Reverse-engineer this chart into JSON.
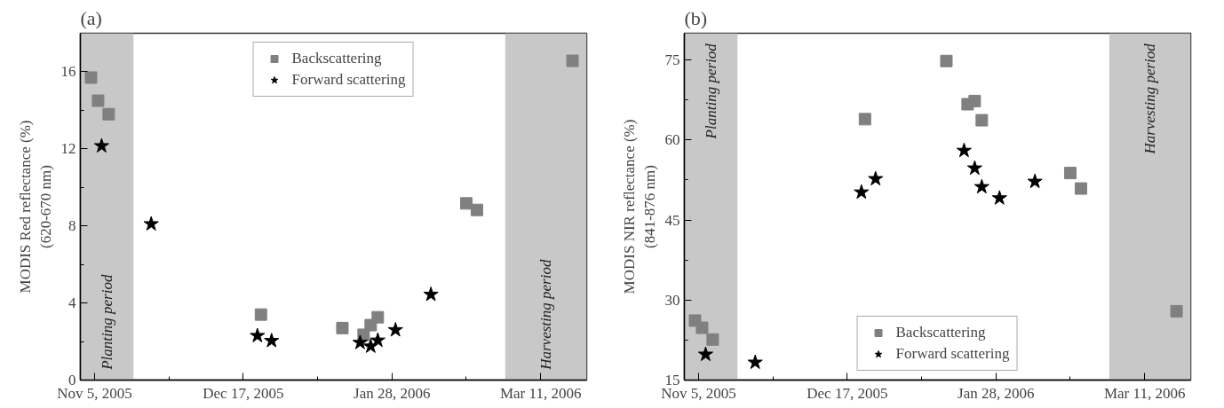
{
  "chart_data": [
    {
      "type": "scatter",
      "title": "(a)",
      "ylabel": "MODIS Red reflectance (%)\n(620-670 nm)",
      "xlim": [
        "2005-11-01",
        "2006-03-24"
      ],
      "ylim": [
        0,
        18
      ],
      "xticks": [
        {
          "value": "2005-11-05",
          "label": "Nov 5, 2005"
        },
        {
          "value": "2005-11-26",
          "label": null
        },
        {
          "value": "2005-12-17",
          "label": "Dec 17, 2005"
        },
        {
          "value": "2006-01-07",
          "label": null
        },
        {
          "value": "2006-01-28",
          "label": "Jan 28, 2006"
        },
        {
          "value": "2006-02-18",
          "label": null
        },
        {
          "value": "2006-03-11",
          "label": "Mar 11, 2006"
        }
      ],
      "yticks": [
        0,
        {
          "value": 2,
          "label": null
        },
        4,
        {
          "value": 6,
          "label": null
        },
        8,
        {
          "value": 10,
          "label": null
        },
        12,
        {
          "value": 14,
          "label": null
        },
        16
      ],
      "bands": [
        {
          "axis": "x",
          "from": "2005-11-01",
          "to": "2005-11-16",
          "label": "Planting period",
          "color": "#c8c8c8"
        },
        {
          "axis": "x",
          "from": "2006-03-01",
          "to": "2006-03-24",
          "label": "Harvesting period",
          "color": "#c8c8c8"
        }
      ],
      "legend": "top",
      "grid": false,
      "series": [
        {
          "name": "Backscattering",
          "color": "#808080",
          "marker": "square",
          "x": [
            "2005-11-04",
            "2005-11-06",
            "2005-11-09",
            "2005-12-22",
            "2006-01-14",
            "2006-01-20",
            "2006-01-22",
            "2006-01-24",
            "2006-02-18",
            "2006-02-21",
            "2006-03-20"
          ],
          "values": [
            15.7,
            14.5,
            13.8,
            3.4,
            2.7,
            2.35,
            2.85,
            3.26,
            9.17,
            8.83,
            16.57
          ]
        },
        {
          "name": "Forward scattering",
          "color": "#000000",
          "marker": "star",
          "x": [
            "2005-11-07",
            "2005-11-21",
            "2005-12-21",
            "2005-12-25",
            "2006-01-19",
            "2006-01-22",
            "2006-01-24",
            "2006-01-29",
            "2006-02-08"
          ],
          "values": [
            12.15,
            8.1,
            2.3,
            2.04,
            1.94,
            1.75,
            2.06,
            2.6,
            4.44
          ]
        }
      ]
    },
    {
      "type": "scatter",
      "title": "(b)",
      "ylabel": "MODIS NIR reflectance (%)\n(841-876 nm)",
      "xlim": [
        "2005-11-01",
        "2006-03-24"
      ],
      "ylim": [
        15,
        80
      ],
      "xticks": [
        {
          "value": "2005-11-05",
          "label": "Nov 5, 2005"
        },
        {
          "value": "2005-11-26",
          "label": null
        },
        {
          "value": "2005-12-17",
          "label": "Dec 17, 2005"
        },
        {
          "value": "2006-01-07",
          "label": null
        },
        {
          "value": "2006-01-28",
          "label": "Jan 28, 2006"
        },
        {
          "value": "2006-02-18",
          "label": null
        },
        {
          "value": "2006-03-11",
          "label": "Mar 11, 2006"
        }
      ],
      "yticks": [
        15,
        {
          "value": 22.5,
          "label": null
        },
        30,
        {
          "value": 37.5,
          "label": null
        },
        45,
        {
          "value": 52.5,
          "label": null
        },
        60,
        {
          "value": 67.5,
          "label": null
        },
        75
      ],
      "bands": [
        {
          "axis": "x",
          "from": "2005-11-01",
          "to": "2005-11-16",
          "label": "Planting period",
          "color": "#c8c8c8"
        },
        {
          "axis": "x",
          "from": "2006-03-01",
          "to": "2006-03-24",
          "label": "Harvesting period",
          "color": "#c8c8c8"
        }
      ],
      "legend": "bottom",
      "grid": false,
      "series": [
        {
          "name": "Backscattering",
          "color": "#808080",
          "marker": "square",
          "x": [
            "2005-11-04",
            "2005-11-06",
            "2005-11-09",
            "2005-12-22",
            "2006-01-14",
            "2006-01-20",
            "2006-01-22",
            "2006-01-24",
            "2006-02-18",
            "2006-02-21",
            "2006-03-20"
          ],
          "values": [
            26.15,
            24.8,
            22.6,
            63.9,
            74.8,
            66.7,
            67.3,
            63.7,
            53.8,
            50.9,
            27.9
          ]
        },
        {
          "name": "Forward scattering",
          "color": "#000000",
          "marker": "star",
          "x": [
            "2005-11-07",
            "2005-11-21",
            "2005-12-21",
            "2005-12-25",
            "2006-01-19",
            "2006-01-22",
            "2006-01-24",
            "2006-01-29",
            "2006-02-08"
          ],
          "values": [
            19.8,
            18.3,
            50.2,
            52.7,
            58.0,
            54.7,
            51.2,
            49.1,
            52.2
          ]
        }
      ]
    }
  ]
}
